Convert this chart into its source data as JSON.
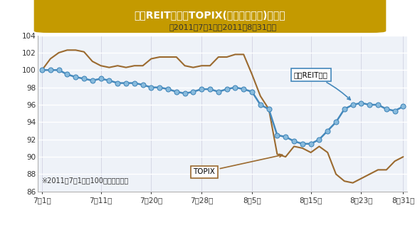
{
  "title": "東証REIT指数とTOPIX(東証株価指数)の推移",
  "subtitle": "（2011年7月1日～2011年8月31日）",
  "note": "※2011年7月1日を100として指数化",
  "title_bg": "#C49A00",
  "title_color": "#ffffff",
  "reit_label": "東証REIT指数",
  "topix_label": "TOPIX",
  "reit_line_color": "#4488bb",
  "reit_marker_face": "#88bbdd",
  "reit_marker_edge": "#4488bb",
  "topix_color": "#9B6A2F",
  "fig_bg": "#ffffff",
  "plot_bg": "#eef2f8",
  "grid_color": "#ccccdd",
  "ylim": [
    86,
    104
  ],
  "yticks": [
    86,
    88,
    90,
    92,
    94,
    96,
    98,
    100,
    102,
    104
  ],
  "xtick_labels": [
    "7月1日",
    "7月11日",
    "7月20日",
    "7月28日",
    "8月5日",
    "8月15日",
    "8月23日",
    "8月31日"
  ],
  "xtick_pos": [
    0,
    7,
    13,
    19,
    25,
    32,
    38,
    43
  ],
  "reit_data": [
    100.0,
    100.0,
    100.0,
    99.5,
    99.2,
    99.0,
    98.8,
    99.0,
    98.8,
    98.5,
    98.5,
    98.5,
    98.3,
    98.0,
    98.0,
    97.8,
    97.5,
    97.3,
    97.5,
    97.8,
    97.8,
    97.5,
    97.8,
    98.0,
    97.8,
    97.5,
    96.0,
    95.5,
    92.5,
    92.3,
    91.8,
    91.5,
    91.5,
    92.0,
    93.0,
    94.0,
    95.5,
    96.0,
    96.2,
    96.0,
    96.0,
    95.5,
    95.3,
    95.8
  ],
  "topix_data": [
    100.0,
    101.3,
    102.0,
    102.3,
    102.3,
    102.1,
    101.0,
    100.5,
    100.3,
    100.5,
    100.3,
    100.5,
    100.5,
    101.3,
    101.5,
    101.5,
    101.5,
    100.5,
    100.3,
    100.5,
    100.5,
    101.5,
    101.5,
    101.8,
    101.8,
    99.5,
    97.0,
    95.5,
    90.3,
    90.0,
    91.2,
    91.0,
    90.5,
    91.2,
    90.5,
    88.0,
    87.2,
    87.0,
    87.5,
    88.0,
    88.5,
    88.5,
    89.5,
    90.0
  ]
}
